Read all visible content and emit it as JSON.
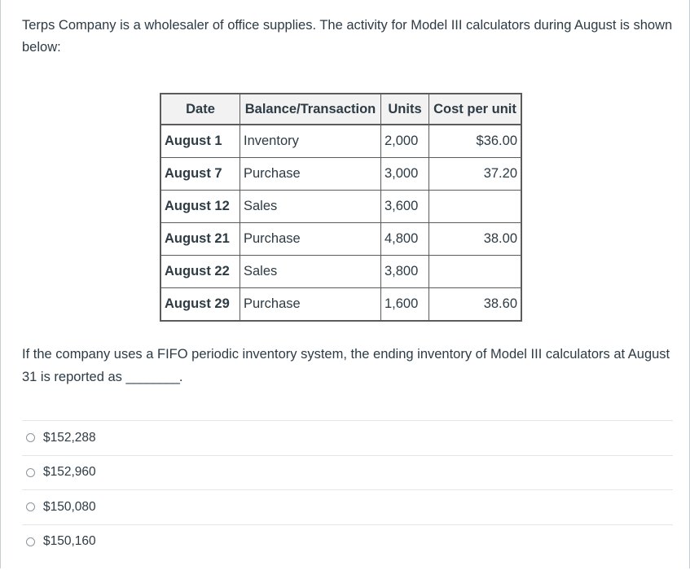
{
  "question": {
    "intro": "Terps Company is a wholesaler of office supplies. The activity for Model III calculators during August is shown below:",
    "prompt_before_blank": "If the company uses a FIFO periodic inventory system, the ending inventory of Model III calculators at August 31 is reported as ",
    "blank": "________",
    "prompt_after_blank": "."
  },
  "table": {
    "headers": {
      "date": "Date",
      "transaction": "Balance/Transaction",
      "units": "Units",
      "cost": "Cost per unit"
    },
    "rows": [
      {
        "date": "August 1",
        "transaction": "Inventory",
        "units": "2,000",
        "cost": "$36.00"
      },
      {
        "date": "August 7",
        "transaction": "Purchase",
        "units": "3,000",
        "cost": "37.20"
      },
      {
        "date": "August 12",
        "transaction": "Sales",
        "units": "3,600",
        "cost": ""
      },
      {
        "date": "August 21",
        "transaction": "Purchase",
        "units": "4,800",
        "cost": "38.00"
      },
      {
        "date": "August 22",
        "transaction": "Sales",
        "units": "3,800",
        "cost": ""
      },
      {
        "date": "August 29",
        "transaction": "Purchase",
        "units": "1,600",
        "cost": "38.60"
      }
    ]
  },
  "answers": [
    {
      "label": "$152,288"
    },
    {
      "label": "$152,960"
    },
    {
      "label": "$150,080"
    },
    {
      "label": "$150,160"
    }
  ]
}
